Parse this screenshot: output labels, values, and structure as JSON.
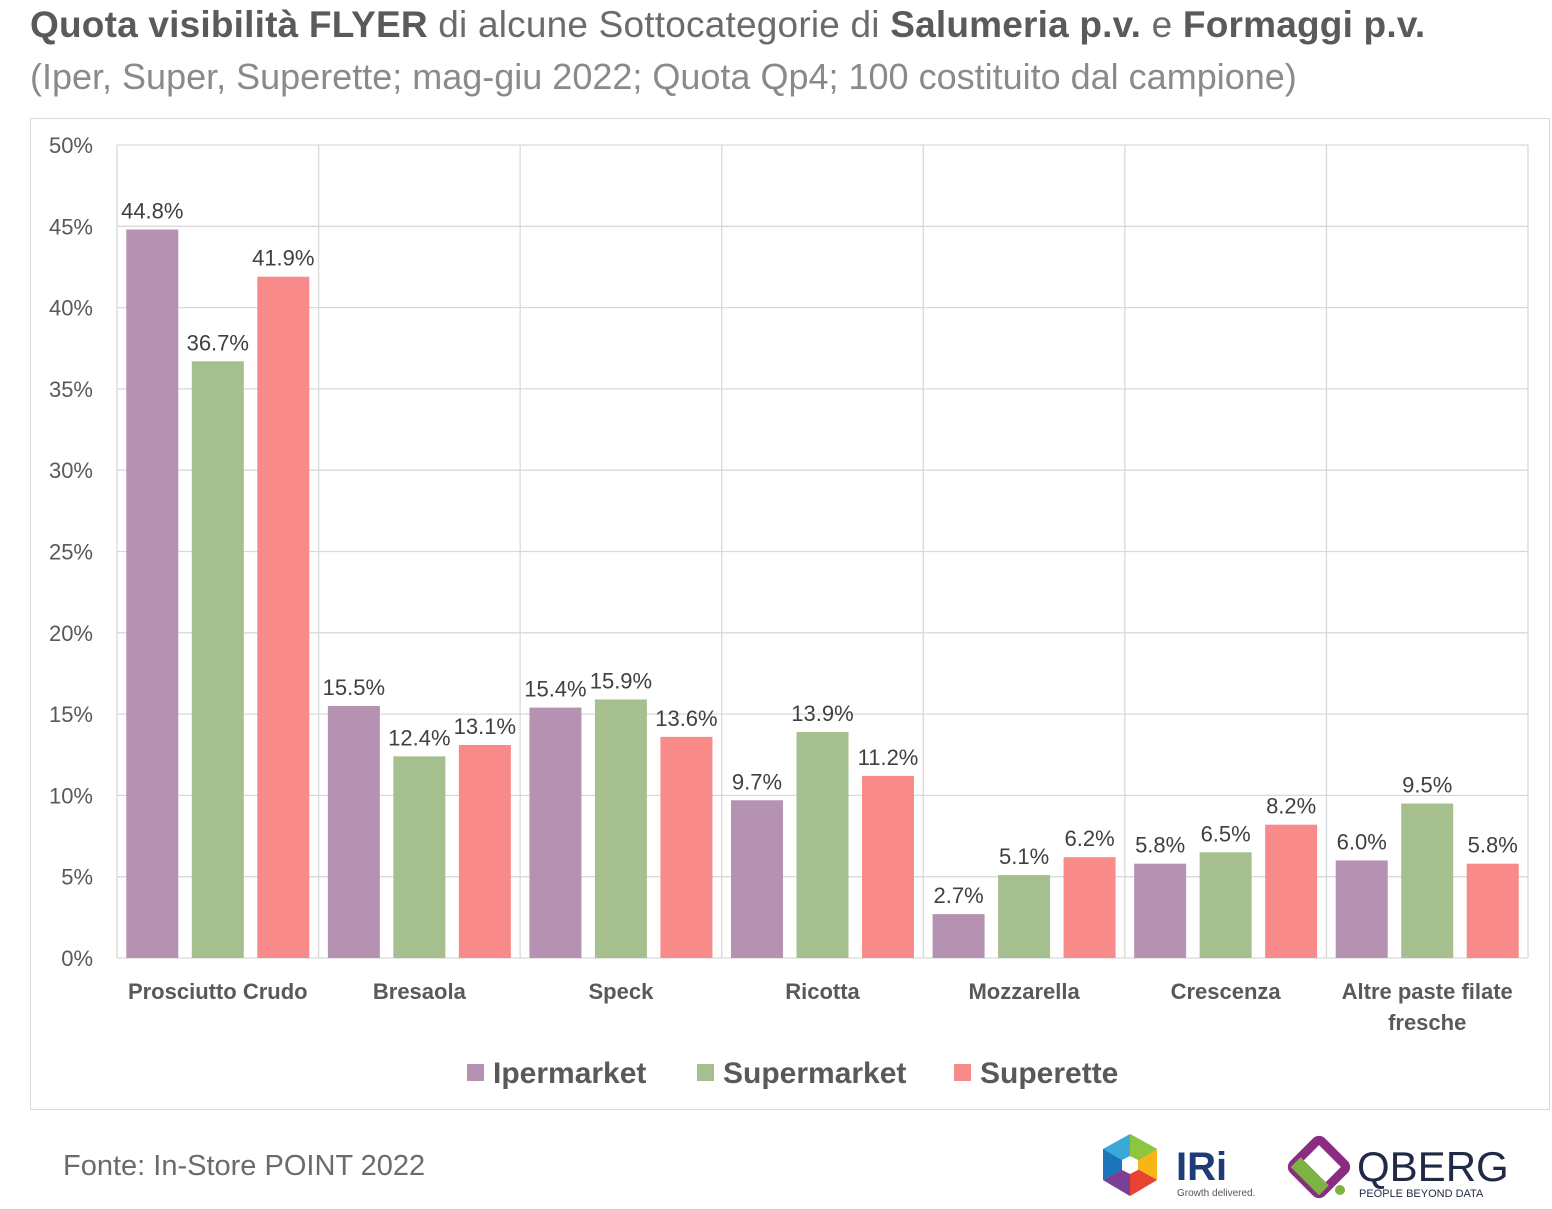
{
  "header": {
    "title_parts": [
      {
        "text": "Quota visibilità FLYER",
        "bold": true
      },
      {
        "text": " di alcune Sottocategorie di ",
        "bold": false
      },
      {
        "text": "Salumeria p.v.",
        "bold": true
      },
      {
        "text": " e ",
        "bold": false
      },
      {
        "text": "Formaggi p.v.",
        "bold": true
      }
    ],
    "subtitle": "(Iper, Super, Superette; mag-giu 2022; Quota Qp4; 100 costituito dal campione)"
  },
  "source": "Fonte: In-Store POINT 2022",
  "logos": {
    "iri": {
      "name": "IRi",
      "tagline": "Growth delivered."
    },
    "qberg": {
      "name": "QBERG",
      "tagline": "PEOPLE BEYOND DATA"
    }
  },
  "chart_data": {
    "type": "bar",
    "categories": [
      [
        "Prosciutto Crudo"
      ],
      [
        "Bresaola"
      ],
      [
        "Speck"
      ],
      [
        "Ricotta"
      ],
      [
        "Mozzarella"
      ],
      [
        "Crescenza"
      ],
      [
        "Altre paste filate",
        "fresche"
      ]
    ],
    "series": [
      {
        "name": "Ipermarket",
        "color": "#b591b2",
        "values": [
          44.8,
          15.5,
          15.4,
          9.7,
          2.7,
          5.8,
          6.0
        ]
      },
      {
        "name": "Supermarket",
        "color": "#a6bf8e",
        "values": [
          36.7,
          12.4,
          15.9,
          13.9,
          5.1,
          6.5,
          9.5
        ]
      },
      {
        "name": "Superette",
        "color": "#f98a8a",
        "values": [
          41.9,
          13.1,
          13.6,
          11.2,
          6.2,
          8.2,
          5.8
        ]
      }
    ],
    "value_labels": [
      [
        "44.8%",
        "15.5%",
        "15.4%",
        "9.7%",
        "2.7%",
        "5.8%",
        "6.0%"
      ],
      [
        "36.7%",
        "12.4%",
        "15.9%",
        "13.9%",
        "5.1%",
        "6.5%",
        "9.5%"
      ],
      [
        "41.9%",
        "13.1%",
        "13.6%",
        "11.2%",
        "6.2%",
        "8.2%",
        "5.8%"
      ]
    ],
    "y_ticks": [
      "0%",
      "5%",
      "10%",
      "15%",
      "20%",
      "25%",
      "30%",
      "35%",
      "40%",
      "45%",
      "50%"
    ],
    "ylim": [
      0,
      50
    ],
    "grid": true,
    "legend_position": "bottom"
  }
}
